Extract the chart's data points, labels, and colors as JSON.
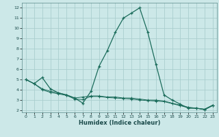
{
  "xlabel": "Humidex (Indice chaleur)",
  "background_color": "#cce8e8",
  "grid_color": "#aacece",
  "line_color": "#1a6b5a",
  "xlim": [
    -0.5,
    23.5
  ],
  "ylim": [
    1.8,
    12.5
  ],
  "x_ticks": [
    0,
    1,
    2,
    3,
    4,
    5,
    6,
    7,
    8,
    9,
    10,
    11,
    12,
    13,
    14,
    15,
    16,
    17,
    18,
    19,
    20,
    21,
    22,
    23
  ],
  "y_ticks": [
    2,
    3,
    4,
    5,
    6,
    7,
    8,
    9,
    10,
    11,
    12
  ],
  "line1_x": [
    0,
    1,
    2,
    3,
    4,
    5,
    6,
    7,
    8,
    9,
    10,
    11,
    12,
    13,
    14,
    15,
    16,
    17,
    18,
    19,
    20,
    21,
    22,
    23
  ],
  "line1_y": [
    5.0,
    4.6,
    5.2,
    4.1,
    3.7,
    3.5,
    3.2,
    2.7,
    3.85,
    6.3,
    7.8,
    9.6,
    11.0,
    11.5,
    12.0,
    9.6,
    6.5,
    3.5,
    3.0,
    2.6,
    2.2,
    2.2,
    2.1,
    2.5
  ],
  "line2_x": [
    0,
    1,
    2,
    3,
    4,
    5,
    6,
    7,
    8,
    9,
    10,
    11,
    12,
    13,
    14,
    15,
    16,
    17,
    18,
    19,
    20,
    21,
    22,
    23
  ],
  "line2_y": [
    5.0,
    4.6,
    4.1,
    3.85,
    3.7,
    3.5,
    3.2,
    3.3,
    3.4,
    3.4,
    3.3,
    3.3,
    3.2,
    3.2,
    3.1,
    3.0,
    3.0,
    2.9,
    2.7,
    2.5,
    2.3,
    2.2,
    2.1,
    2.5
  ],
  "line3_x": [
    0,
    1,
    2,
    3,
    4,
    5,
    6,
    7,
    8,
    9,
    10,
    11,
    12,
    13,
    14,
    15,
    16,
    17,
    18,
    19,
    20,
    21,
    22,
    23
  ],
  "line3_y": [
    5.0,
    4.6,
    4.0,
    3.75,
    3.6,
    3.45,
    3.1,
    3.05,
    3.35,
    3.35,
    3.25,
    3.2,
    3.15,
    3.1,
    3.0,
    2.95,
    2.9,
    2.85,
    2.65,
    2.45,
    2.25,
    2.2,
    2.05,
    2.45
  ]
}
